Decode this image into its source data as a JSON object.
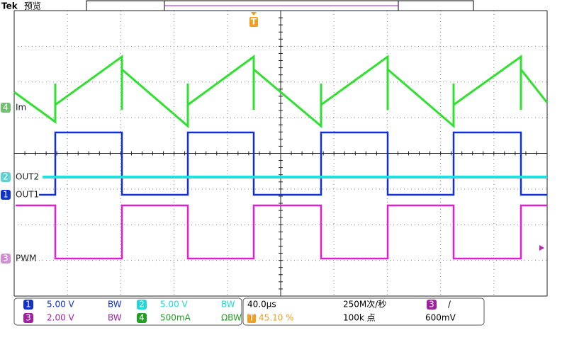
{
  "header": {
    "brand": "Tek",
    "mode": "预览",
    "trigger_marker": "T"
  },
  "channels": [
    {
      "badge": "4",
      "label": "Im"
    },
    {
      "badge": "2",
      "label": "OUT2"
    },
    {
      "badge": "1",
      "label": "OUT1"
    },
    {
      "badge": "3",
      "label": "PWM"
    }
  ],
  "settings": {
    "ch1": {
      "badge": "1",
      "scale": "5.00 V",
      "bw": "BW"
    },
    "ch2": {
      "badge": "2",
      "scale": "5.00 V",
      "bw": "BW"
    },
    "ch3": {
      "badge": "3",
      "scale": "2.00 V",
      "bw": "BW"
    },
    "ch4": {
      "badge": "4",
      "scale": "500mA",
      "bw": "ΩBW"
    }
  },
  "timebase": {
    "scale": "40.0μs",
    "sample_rate": "250M次/秒",
    "trigger_badge": "T",
    "trigger_position": "45.10 %",
    "record_length": "100k 点",
    "trigger_source": "3",
    "trigger_slope": "/",
    "trigger_level": "600mV"
  }
}
